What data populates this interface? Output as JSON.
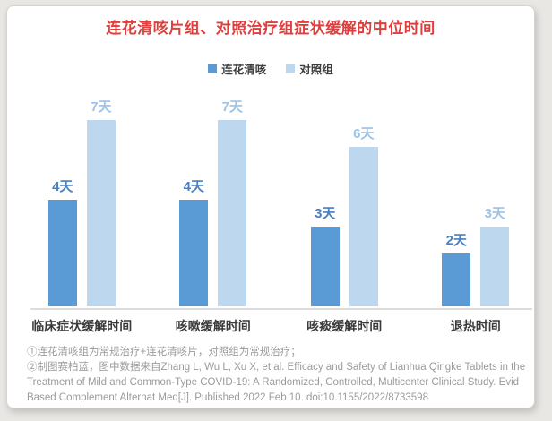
{
  "page": {
    "title": "连花清咳片组、对照治疗组症状缓解的中位时间",
    "title_color": "#e03e3c"
  },
  "legend": [
    {
      "label": "连花清咳",
      "color": "#5B9BD5"
    },
    {
      "label": "对照组",
      "color": "#BDD7EE"
    }
  ],
  "chart_data": {
    "type": "bar",
    "title": "连花清咳片组、对照治疗组症状缓解的中位时间",
    "categories": [
      "临床症状缓解时间",
      "咳嗽缓解时间",
      "咳痰缓解时间",
      "退热时间"
    ],
    "series": [
      {
        "name": "连花清咳",
        "color": "#5B9BD5",
        "label_color": "#4a7fc0",
        "values": [
          4,
          4,
          3,
          2
        ],
        "labels": [
          "4天",
          "4天",
          "3天",
          "2天"
        ]
      },
      {
        "name": "对照组",
        "color": "#BDD7EE",
        "label_color": "#9DC3E6",
        "values": [
          7,
          7,
          6,
          3
        ],
        "labels": [
          "7天",
          "7天",
          "6天",
          "3天"
        ]
      }
    ],
    "unit": "天",
    "ylim": [
      0,
      7
    ],
    "grid": false,
    "legend_position": "top",
    "value_labels": true,
    "axis_color": "#dcdcdc"
  },
  "footnotes": [
    "①连花清咳组为常规治疗+连花清咳片，对照组为常规治疗；",
    "②制图赛柏蓝，图中数据来自Zhang L, Wu L, Xu X, et al. Efficacy and Safety of Lianhua Qingke Tablets in the Treatment of Mild and Common-Type COVID-19: A Randomized, Controlled, Multicenter Clinical Study. Evid Based Complement Alternat Med[J]. Published 2022 Feb 10. doi:10.1155/2022/8733598"
  ]
}
